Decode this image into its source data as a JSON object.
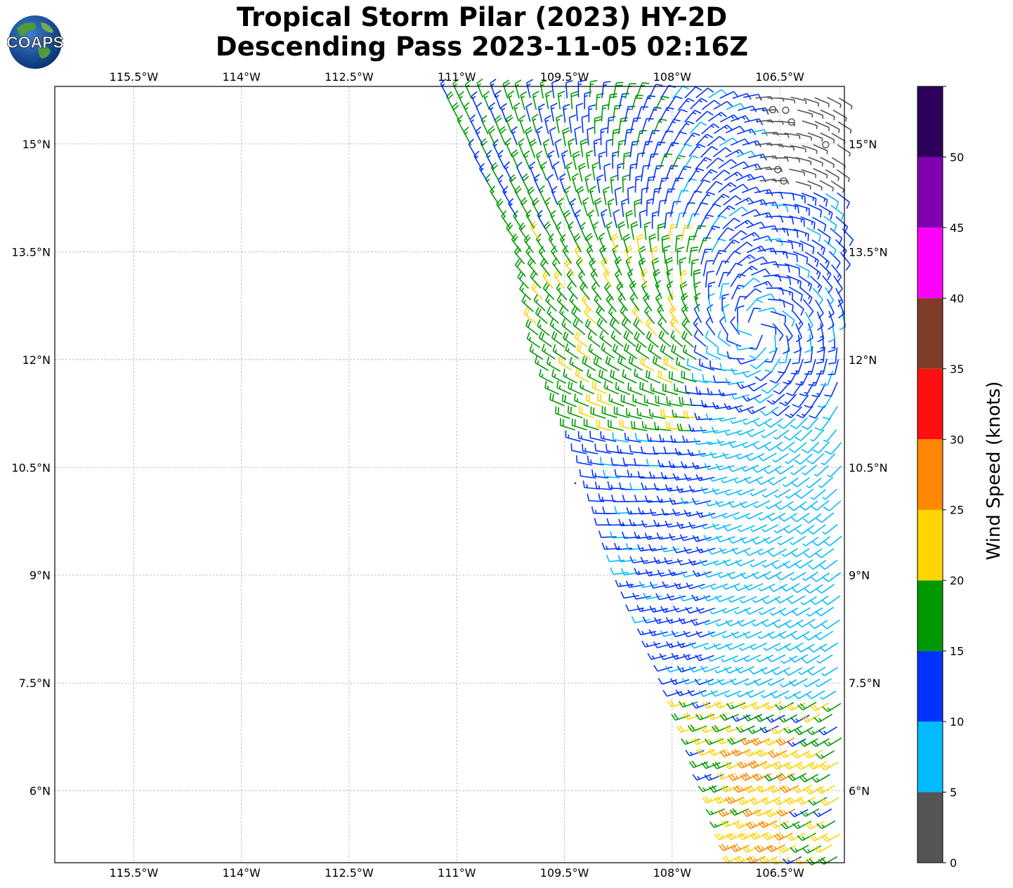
{
  "header": {
    "title_line1": "Tropical Storm Pilar (2023) HY-2D",
    "title_line2": "Descending Pass 2023-11-05 02:16Z"
  },
  "logo": {
    "text": "COAPS",
    "icon": "globe-logo-icon"
  },
  "map": {
    "lon_range": [
      -116.6,
      -105.6
    ],
    "lat_range": [
      5.0,
      15.8
    ],
    "lon_ticks": [
      {
        "value": -115.5,
        "label": "115.5°W"
      },
      {
        "value": -114.0,
        "label": "114°W"
      },
      {
        "value": -112.5,
        "label": "112.5°W"
      },
      {
        "value": -111.0,
        "label": "111°W"
      },
      {
        "value": -109.5,
        "label": "109.5°W"
      },
      {
        "value": -108.0,
        "label": "108°W"
      },
      {
        "value": -106.5,
        "label": "106.5°W"
      }
    ],
    "lat_ticks": [
      {
        "value": 15.0,
        "label": "15°N"
      },
      {
        "value": 13.5,
        "label": "13.5°N"
      },
      {
        "value": 12.0,
        "label": "12°N"
      },
      {
        "value": 10.5,
        "label": "10.5°N"
      },
      {
        "value": 9.0,
        "label": "9°N"
      },
      {
        "value": 7.5,
        "label": "7.5°N"
      },
      {
        "value": 6.0,
        "label": "6°N"
      }
    ],
    "gridlines": true,
    "storm_center": {
      "lon": -106.8,
      "lat": 12.3
    },
    "swath_left_edge": [
      {
        "lat": 15.8,
        "lon": -111.2
      },
      {
        "lat": 13.5,
        "lon": -110.1
      },
      {
        "lat": 12.0,
        "lon": -109.8
      },
      {
        "lat": 10.5,
        "lon": -109.1
      },
      {
        "lat": 9.0,
        "lon": -108.6
      },
      {
        "lat": 7.5,
        "lon": -107.9
      },
      {
        "lat": 5.0,
        "lon": -107.0
      }
    ],
    "land_speck": {
      "lon": -109.35,
      "lat": 10.28
    }
  },
  "colorbar": {
    "label": "Wind Speed (knots)",
    "min": 0,
    "max": 55,
    "ticks": [
      0,
      5,
      10,
      15,
      20,
      25,
      30,
      35,
      40,
      45,
      50
    ],
    "bins": [
      {
        "from": 0,
        "to": 5,
        "color": "#555555"
      },
      {
        "from": 5,
        "to": 10,
        "color": "#00bbff"
      },
      {
        "from": 10,
        "to": 15,
        "color": "#0033ff"
      },
      {
        "from": 15,
        "to": 20,
        "color": "#009900"
      },
      {
        "from": 20,
        "to": 25,
        "color": "#ffd500"
      },
      {
        "from": 25,
        "to": 30,
        "color": "#ff8800"
      },
      {
        "from": 30,
        "to": 35,
        "color": "#ff0f0f"
      },
      {
        "from": 35,
        "to": 40,
        "color": "#803c28"
      },
      {
        "from": 40,
        "to": 45,
        "color": "#ff00ff"
      },
      {
        "from": 45,
        "to": 50,
        "color": "#8000b0"
      },
      {
        "from": 50,
        "to": 55,
        "color": "#2d005a"
      }
    ]
  }
}
